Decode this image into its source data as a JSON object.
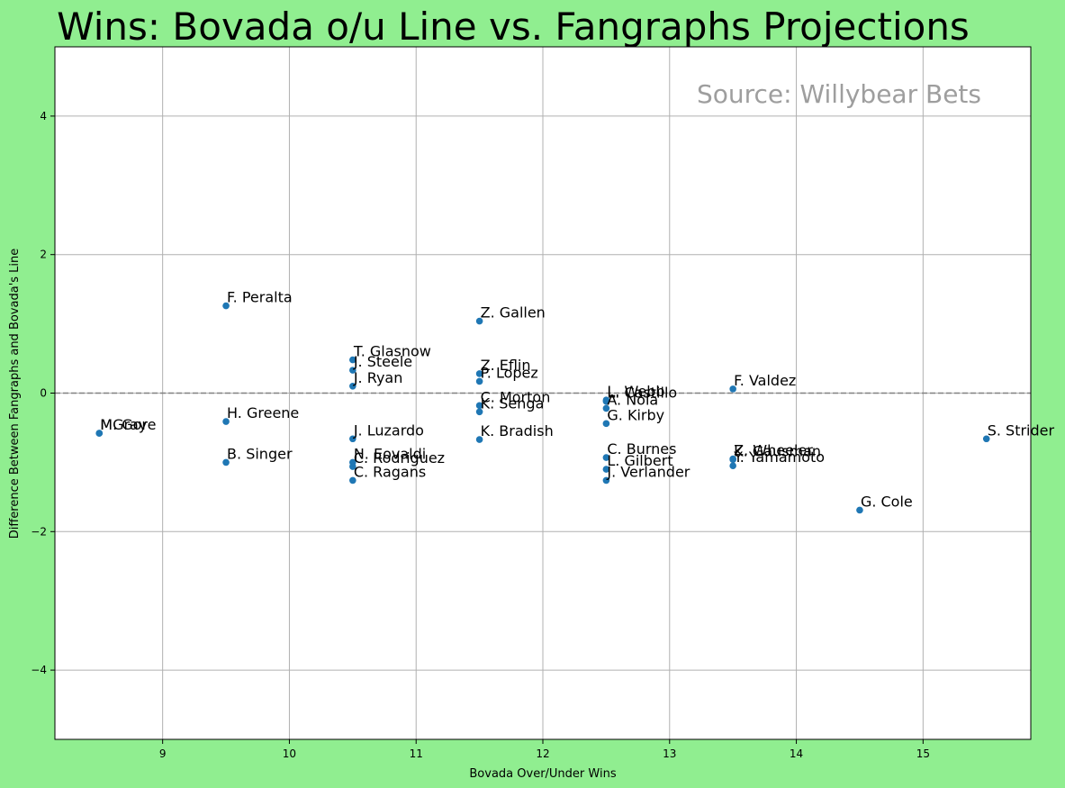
{
  "chart_data": {
    "type": "scatter",
    "title": "Wins: Bovada o/u Line vs. Fangraphs Projections",
    "xlabel": "Bovada Over/Under Wins",
    "ylabel": "Difference Between Fangraphs and Bovada's Line",
    "annotation": "Source: Willybear Bets",
    "xlim": [
      8.15,
      15.85
    ],
    "ylim": [
      -5,
      5
    ],
    "xticks": [
      9,
      10,
      11,
      12,
      13,
      14,
      15
    ],
    "yticks": [
      -4,
      -2,
      0,
      2,
      4
    ],
    "ytick_labels": [
      "−4",
      "−2",
      "0",
      "2",
      "4"
    ],
    "reference_line_y": 0,
    "grid": true,
    "marker_color": "#1f77b4",
    "points": [
      {
        "label": "M. Gore",
        "x": 8.5,
        "y": -0.58
      },
      {
        "label": "MGray",
        "x": 8.5,
        "y": -0.58
      },
      {
        "label": "F. Peralta",
        "x": 9.5,
        "y": 1.26
      },
      {
        "label": "H. Greene",
        "x": 9.5,
        "y": -0.41
      },
      {
        "label": "B. Singer",
        "x": 9.5,
        "y": -1.0
      },
      {
        "label": "T. Glasnow",
        "x": 10.5,
        "y": 0.48
      },
      {
        "label": "J. Steele",
        "x": 10.5,
        "y": 0.33
      },
      {
        "label": "J. Ryan",
        "x": 10.5,
        "y": 0.1
      },
      {
        "label": "J. Luzardo",
        "x": 10.5,
        "y": -0.66
      },
      {
        "label": "N. Eovaldi",
        "x": 10.5,
        "y": -1.0
      },
      {
        "label": "C. Rodriguez",
        "x": 10.5,
        "y": -1.06
      },
      {
        "label": "C. Ragans",
        "x": 10.5,
        "y": -1.26
      },
      {
        "label": "Z. Gallen",
        "x": 11.5,
        "y": 1.04
      },
      {
        "label": "Z. Eflin",
        "x": 11.5,
        "y": 0.28
      },
      {
        "label": "P. Lopez",
        "x": 11.5,
        "y": 0.17
      },
      {
        "label": "C. Morton",
        "x": 11.5,
        "y": -0.18
      },
      {
        "label": "K. Senga",
        "x": 11.5,
        "y": -0.27
      },
      {
        "label": "K. Bradish",
        "x": 11.5,
        "y": -0.67
      },
      {
        "label": "L. Webb",
        "x": 12.5,
        "y": -0.1
      },
      {
        "label": "L. Castillo",
        "x": 12.5,
        "y": -0.12
      },
      {
        "label": "A. Nola",
        "x": 12.5,
        "y": -0.22
      },
      {
        "label": "G. Kirby",
        "x": 12.5,
        "y": -0.44
      },
      {
        "label": "C. Burnes",
        "x": 12.5,
        "y": -0.93
      },
      {
        "label": "L. Gilbert",
        "x": 12.5,
        "y": -1.1
      },
      {
        "label": "J. Verlander",
        "x": 12.5,
        "y": -1.26
      },
      {
        "label": "F. Valdez",
        "x": 13.5,
        "y": 0.06
      },
      {
        "label": "Z. Wheeler",
        "x": 13.5,
        "y": -0.95
      },
      {
        "label": "K. Gausman",
        "x": 13.5,
        "y": -0.96
      },
      {
        "label": "Y. Yamamoto",
        "x": 13.5,
        "y": -1.05
      },
      {
        "label": "G. Cole",
        "x": 14.5,
        "y": -1.69
      },
      {
        "label": "S. Strider",
        "x": 15.5,
        "y": -0.66
      }
    ]
  }
}
